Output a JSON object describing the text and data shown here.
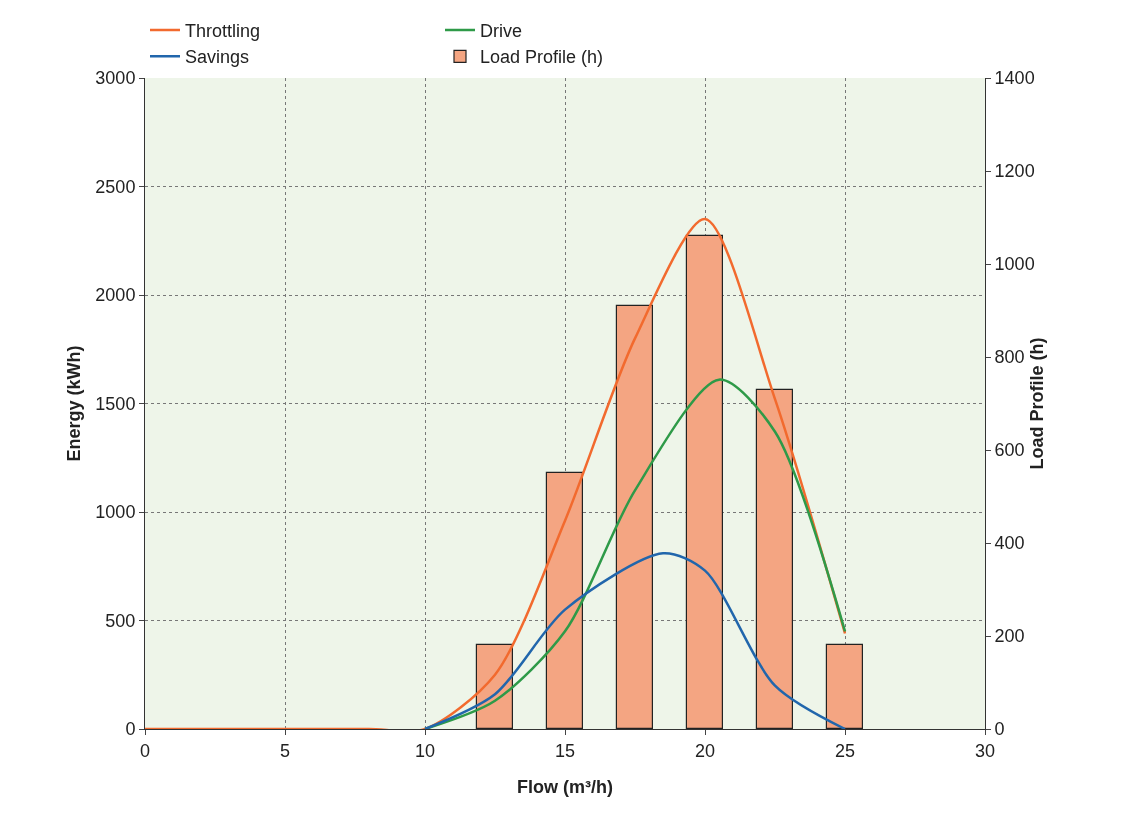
{
  "chart_data": {
    "type": "line",
    "xlabel": "Flow (m³/h)",
    "ylabel": "Energy (kWh)",
    "y2label": "Load Profile (h)",
    "xlim": [
      0,
      30
    ],
    "xticks": [
      0,
      5,
      10,
      15,
      20,
      25,
      30
    ],
    "ylim": [
      0,
      3000
    ],
    "yticks": [
      0,
      500,
      1000,
      1500,
      2000,
      2500,
      3000
    ],
    "y2lim": [
      0,
      1400
    ],
    "y2ticks": [
      0,
      200,
      400,
      600,
      800,
      1000,
      1200,
      1400
    ],
    "grid": true,
    "legend": "top",
    "series": [
      {
        "name": "Throttling",
        "color": "#f26a2e",
        "x": [
          0,
          5,
          8,
          10,
          12.5,
          15,
          17.5,
          20,
          22.5,
          25
        ],
        "values": [
          0,
          0,
          0,
          0,
          250,
          960,
          1800,
          2350,
          1520,
          440
        ]
      },
      {
        "name": "Drive",
        "color": "#2e9a48",
        "x": [
          10,
          12.5,
          15,
          17.5,
          20.5,
          22.5,
          25
        ],
        "values": [
          0,
          130,
          450,
          1100,
          1610,
          1370,
          450
        ]
      },
      {
        "name": "Savings",
        "color": "#2166ac",
        "x": [
          10,
          12.5,
          15,
          18.5,
          20,
          22.5,
          25
        ],
        "values": [
          0,
          160,
          550,
          810,
          730,
          200,
          0
        ]
      },
      {
        "name": "Load Profile (h)",
        "type": "bar",
        "axis": "y2",
        "color": "#f4a582",
        "x": [
          12.5,
          15,
          17.5,
          20,
          22.5,
          25
        ],
        "values": [
          180,
          550,
          910,
          1060,
          730,
          180
        ]
      }
    ]
  }
}
